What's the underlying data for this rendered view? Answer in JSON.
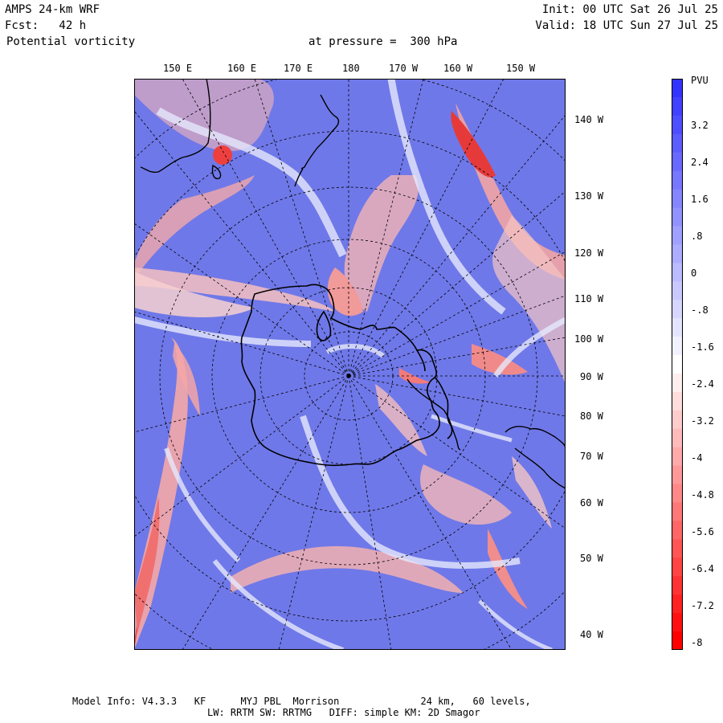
{
  "header": {
    "model": "AMPS 24-km WRF",
    "forecast": "Fcst:   42 h",
    "field": "Potential vorticity",
    "level": "at pressure =  300 hPa",
    "init": "Init: 00 UTC Sat 26 Jul 25",
    "valid": "Valid: 18 UTC Sun 27 Jul 25"
  },
  "map": {
    "projection": "polar stereographic",
    "top_lon_labels": [
      "150 E",
      "160 E",
      "170 E",
      "180",
      "170 W",
      "160 W",
      "150 W"
    ],
    "right_lon_labels": [
      "140 W",
      "130 W",
      "120 W",
      "110 W",
      "100 W",
      "90 W",
      "80 W",
      "70 W",
      "60 W",
      "50 W",
      "40 W"
    ],
    "colors": {
      "positive": "#3333ff",
      "neutral": "#ffffff",
      "negative": "#ff0000",
      "fill": "#6f78e8"
    }
  },
  "colorbar": {
    "unit": "PVU",
    "labels": [
      "3.2",
      "2.4",
      "1.6",
      ".8",
      "0",
      "-.8",
      "-1.6",
      "-2.4",
      "-3.2",
      "-4",
      "-4.8",
      "-5.6",
      "-6.4",
      "-7.2",
      "-8"
    ]
  },
  "footer": {
    "line1": "Model Info: V4.3.3   KF      MYJ PBL  Morrison              24 km,   60 levels,",
    "line2": "LW: RRTM SW: RRTMG   DIFF: simple KM: 2D Smagor"
  }
}
